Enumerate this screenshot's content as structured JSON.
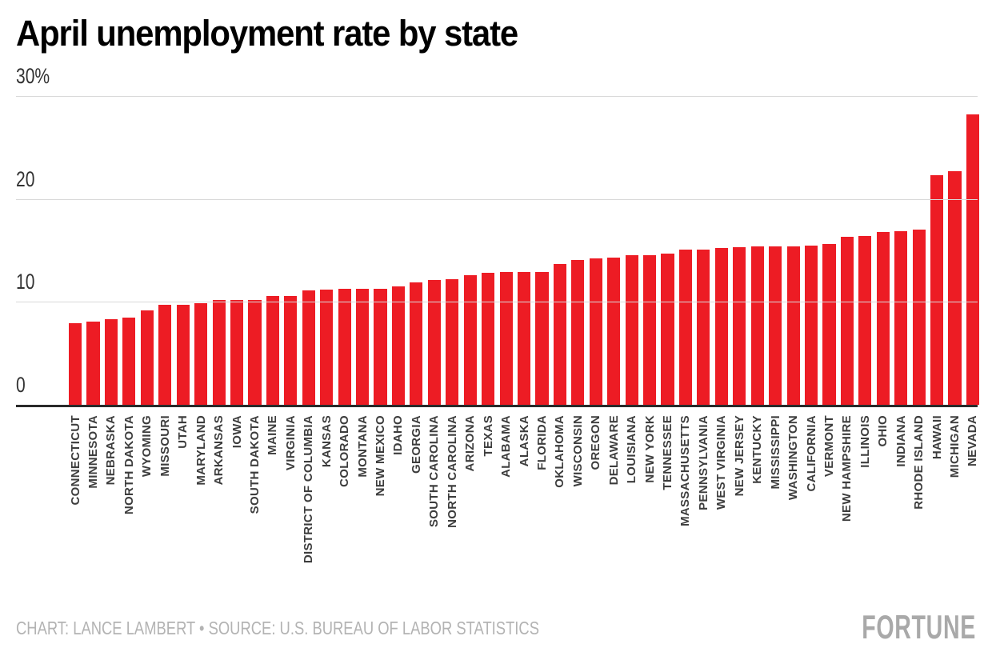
{
  "title": "April unemployment rate by state",
  "footer": {
    "credit": "CHART: LANCE LAMBERT • SOURCE: U.S. BUREAU OF LABOR STATISTICS",
    "brand": "FORTUNE"
  },
  "colors": {
    "bar": "#ED1C24",
    "grid": "#D9D9D9",
    "axis": "#2B2B2B",
    "tick_label": "#333333",
    "state_label": "#3D3D3D",
    "credit_text": "#B3B3B3",
    "brand_text": "#A9A9A9",
    "background": "#FFFFFF"
  },
  "chart_data": {
    "type": "bar",
    "title": "April unemployment rate by state",
    "xlabel": "",
    "ylabel": "",
    "unit": "%",
    "ylim": [
      0,
      30
    ],
    "grid": "horizontal",
    "legend": "none",
    "yticks": [
      {
        "value": 0,
        "label": "0"
      },
      {
        "value": 10,
        "label": "10"
      },
      {
        "value": 20,
        "label": "20"
      },
      {
        "value": 30,
        "label": "30%"
      }
    ],
    "categories": [
      "CONNECTICUT",
      "MINNESOTA",
      "NEBRASKA",
      "NORTH DAKOTA",
      "WYOMING",
      "MISSOURI",
      "UTAH",
      "MARYLAND",
      "ARKANSAS",
      "IOWA",
      "SOUTH DAKOTA",
      "MAINE",
      "VIRGINIA",
      "DISTRICT OF COLUMBIA",
      "KANSAS",
      "COLORADO",
      "MONTANA",
      "NEW MEXICO",
      "IDAHO",
      "GEORGIA",
      "SOUTH CAROLINA",
      "NORTH CAROLINA",
      "ARIZONA",
      "TEXAS",
      "ALABAMA",
      "ALASKA",
      "FLORIDA",
      "OKLAHOMA",
      "WISCONSIN",
      "OREGON",
      "DELAWARE",
      "LOUISIANA",
      "NEW YORK",
      "TENNESSEE",
      "MASSACHUSETTS",
      "PENNSYLVANIA",
      "WEST VIRGINIA",
      "NEW JERSEY",
      "KENTUCKY",
      "MISSISSIPPI",
      "WASHINGTON",
      "CALIFORNIA",
      "VERMONT",
      "NEW HAMPSHIRE",
      "ILLINOIS",
      "OHIO",
      "INDIANA",
      "RHODE ISLAND",
      "HAWAII",
      "MICHIGAN",
      "NEVADA"
    ],
    "values": [
      7.9,
      8.1,
      8.3,
      8.5,
      9.2,
      9.7,
      9.7,
      9.9,
      10.2,
      10.2,
      10.2,
      10.6,
      10.6,
      11.1,
      11.2,
      11.3,
      11.3,
      11.3,
      11.5,
      11.9,
      12.1,
      12.2,
      12.6,
      12.8,
      12.9,
      12.9,
      12.9,
      13.7,
      14.1,
      14.2,
      14.3,
      14.5,
      14.5,
      14.7,
      15.1,
      15.1,
      15.2,
      15.3,
      15.4,
      15.4,
      15.4,
      15.5,
      15.6,
      16.3,
      16.4,
      16.8,
      16.9,
      17.0,
      22.3,
      22.7,
      28.2
    ]
  }
}
